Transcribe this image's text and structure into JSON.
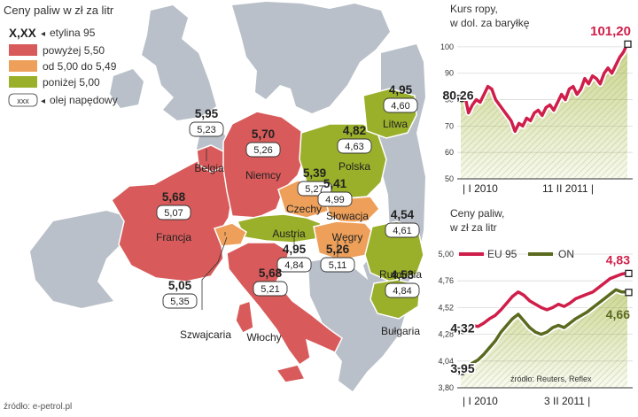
{
  "title": "Ceny paliw w zł za litr",
  "legend": {
    "etylina_symbol": "X,XX",
    "etylina_label": "etylina 95",
    "items": [
      {
        "label": "powyżej 5,50",
        "color": "#d85a5a"
      },
      {
        "label": "od 5,00 do 5,49",
        "color": "#eea05a"
      },
      {
        "label": "poniżej 5,00",
        "color": "#9aaf2a"
      }
    ],
    "diesel_symbol": "xxx",
    "diesel_label": "olej napędowy"
  },
  "colors": {
    "water": "#ffffff",
    "land": "#b9c0c9",
    "high": "#d85a5a",
    "mid": "#eea05a",
    "low": "#9aaf2a",
    "euLine": "#d01e4a",
    "onLine": "#5a6a1e"
  },
  "countries": [
    {
      "name": "Belgia",
      "petrol": "5,95",
      "diesel": "5,23"
    },
    {
      "name": "Niemcy",
      "petrol": "5,70",
      "diesel": "5,26"
    },
    {
      "name": "Francja",
      "petrol": "5,68",
      "diesel": "5,07"
    },
    {
      "name": "Czechy",
      "petrol": "5,39",
      "diesel": "5,27"
    },
    {
      "name": "Polska",
      "petrol": "4,82",
      "diesel": "4,63"
    },
    {
      "name": "Litwa",
      "petrol": "4,95",
      "diesel": "4,60"
    },
    {
      "name": "Słowacja",
      "petrol": "5,41",
      "diesel": "4,99"
    },
    {
      "name": "Węgry",
      "petrol": "5,26",
      "diesel": "5,11"
    },
    {
      "name": "Austria",
      "petrol": "4,95",
      "diesel": "4,84"
    },
    {
      "name": "Szwajcaria",
      "petrol": "5,05",
      "diesel": "5,35"
    },
    {
      "name": "Włochy",
      "petrol": "5,68",
      "diesel": "5,21"
    },
    {
      "name": "Rumunia",
      "petrol": "4,54",
      "diesel": "4,61"
    },
    {
      "name": "Bułgaria",
      "petrol": "4,53",
      "diesel": "4,84"
    }
  ],
  "source_map": "źródło: e-petrol.pl",
  "chart_data": [
    {
      "type": "line",
      "title": "Kurs ropy, w dol. za baryłkę",
      "title_lines": [
        "Kurs ropy,",
        "w dol. za baryłkę"
      ],
      "ylim": [
        50,
        105
      ],
      "yticks": [
        50,
        60,
        70,
        80,
        90,
        100
      ],
      "ytick_labels": [
        "50",
        "60",
        "70",
        "80",
        "90",
        "100"
      ],
      "xtick_labels": [
        "I 2010",
        "11 II 2011"
      ],
      "start_label": "80,26",
      "end_label": "101,20",
      "series": [
        {
          "name": "Kurs ropy",
          "values": [
            80.3,
            82,
            75,
            78,
            80,
            79,
            82,
            85,
            84,
            80,
            78,
            76,
            74,
            72,
            68,
            71,
            70,
            73,
            72,
            75,
            76,
            74,
            77,
            78,
            76,
            79,
            82,
            80,
            84,
            85,
            82,
            84,
            88,
            86,
            89,
            88,
            86,
            90,
            92,
            90,
            93,
            96,
            98,
            101.2
          ]
        }
      ]
    },
    {
      "type": "line",
      "title": "Ceny paliw, w zł za litr",
      "title_lines": [
        "Ceny paliw,",
        "w zł za litr"
      ],
      "ylim": [
        3.8,
        5.0
      ],
      "yticks": [
        3.8,
        4.04,
        4.28,
        4.52,
        4.76,
        5.0
      ],
      "ytick_labels": [
        "3,80",
        "4,04",
        "4,28",
        "4,52",
        "4,76",
        "5,00"
      ],
      "xtick_labels": [
        "I 2010",
        "3 II 2011"
      ],
      "legend": [
        "EU 95",
        "ON"
      ],
      "source": "źródło: Reuters, Reflex",
      "series": [
        {
          "name": "EU 95",
          "start_label": "4,32",
          "end_label": "4,83",
          "values": [
            4.32,
            4.34,
            4.36,
            4.35,
            4.38,
            4.42,
            4.45,
            4.5,
            4.56,
            4.62,
            4.66,
            4.63,
            4.58,
            4.55,
            4.52,
            4.5,
            4.52,
            4.55,
            4.53,
            4.56,
            4.6,
            4.62,
            4.64,
            4.66,
            4.7,
            4.74,
            4.78,
            4.8,
            4.82,
            4.83
          ]
        },
        {
          "name": "ON",
          "start_label": "3,95",
          "end_label": "4,66",
          "values": [
            3.95,
            3.98,
            4.02,
            4.05,
            4.1,
            4.16,
            4.22,
            4.3,
            4.36,
            4.42,
            4.46,
            4.4,
            4.34,
            4.3,
            4.28,
            4.3,
            4.34,
            4.36,
            4.34,
            4.38,
            4.42,
            4.45,
            4.48,
            4.52,
            4.56,
            4.6,
            4.64,
            4.68,
            4.66,
            4.66
          ]
        }
      ]
    }
  ]
}
